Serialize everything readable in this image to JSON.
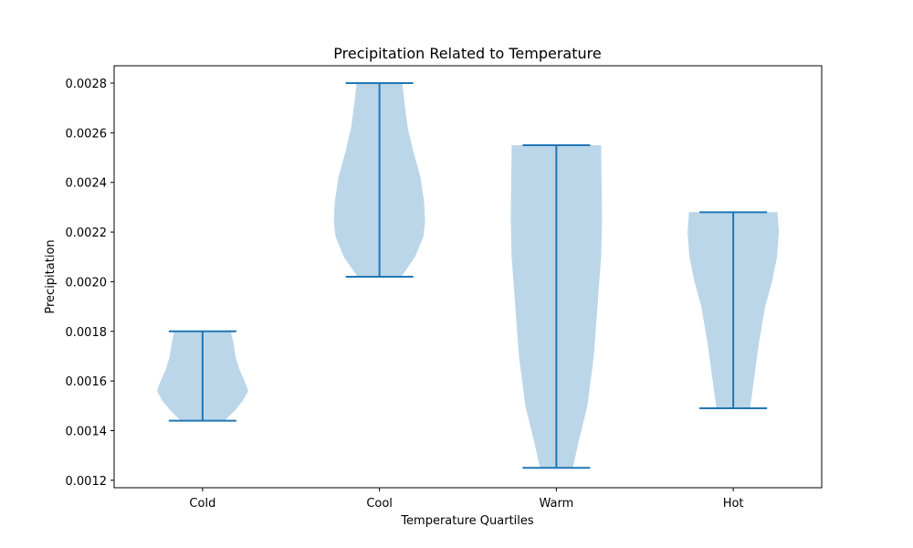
{
  "chart_data": {
    "type": "violin",
    "title": "Precipitation Related to Temperature",
    "xlabel": "Temperature Quartiles",
    "ylabel": "Precipitation",
    "categories": [
      "Cold",
      "Cool",
      "Warm",
      "Hot"
    ],
    "ylim": [
      0.00117,
      0.00287
    ],
    "yticks": [
      0.0012,
      0.0014,
      0.0016,
      0.0018,
      0.002,
      0.0022,
      0.0024,
      0.0026,
      0.0028
    ],
    "ytick_labels": [
      "0.0012",
      "0.0014",
      "0.0016",
      "0.0018",
      "0.0020",
      "0.0022",
      "0.0024",
      "0.0026",
      "0.0028"
    ],
    "grid": false,
    "colors": {
      "body": "#bcd6e9",
      "line": "#1f77b4"
    },
    "violins": [
      {
        "name": "Cold",
        "min": 0.00144,
        "max": 0.0018,
        "profile": [
          [
            0.00144,
            0.48
          ],
          [
            0.00148,
            0.7
          ],
          [
            0.00152,
            0.88
          ],
          [
            0.00156,
            1.0
          ],
          [
            0.0016,
            0.92
          ],
          [
            0.00165,
            0.8
          ],
          [
            0.0017,
            0.72
          ],
          [
            0.00175,
            0.68
          ],
          [
            0.0018,
            0.62
          ]
        ]
      },
      {
        "name": "Cool",
        "min": 0.00202,
        "max": 0.0028,
        "profile": [
          [
            0.00202,
            0.48
          ],
          [
            0.0021,
            0.78
          ],
          [
            0.00218,
            0.96
          ],
          [
            0.00224,
            1.0
          ],
          [
            0.00232,
            0.98
          ],
          [
            0.00242,
            0.9
          ],
          [
            0.00252,
            0.75
          ],
          [
            0.00262,
            0.62
          ],
          [
            0.00272,
            0.55
          ],
          [
            0.0028,
            0.5
          ]
        ]
      },
      {
        "name": "Warm",
        "min": 0.00125,
        "max": 0.00255,
        "profile": [
          [
            0.00125,
            0.36
          ],
          [
            0.00135,
            0.48
          ],
          [
            0.0015,
            0.68
          ],
          [
            0.0017,
            0.82
          ],
          [
            0.0019,
            0.9
          ],
          [
            0.0021,
            0.98
          ],
          [
            0.00225,
            1.0
          ],
          [
            0.0024,
            0.99
          ],
          [
            0.00255,
            0.98
          ]
        ]
      },
      {
        "name": "Hot",
        "min": 0.00149,
        "max": 0.00228,
        "profile": [
          [
            0.00149,
            0.37
          ],
          [
            0.0016,
            0.45
          ],
          [
            0.00175,
            0.56
          ],
          [
            0.0019,
            0.7
          ],
          [
            0.002,
            0.85
          ],
          [
            0.0021,
            0.96
          ],
          [
            0.0022,
            1.0
          ],
          [
            0.00228,
            0.97
          ]
        ]
      }
    ]
  }
}
